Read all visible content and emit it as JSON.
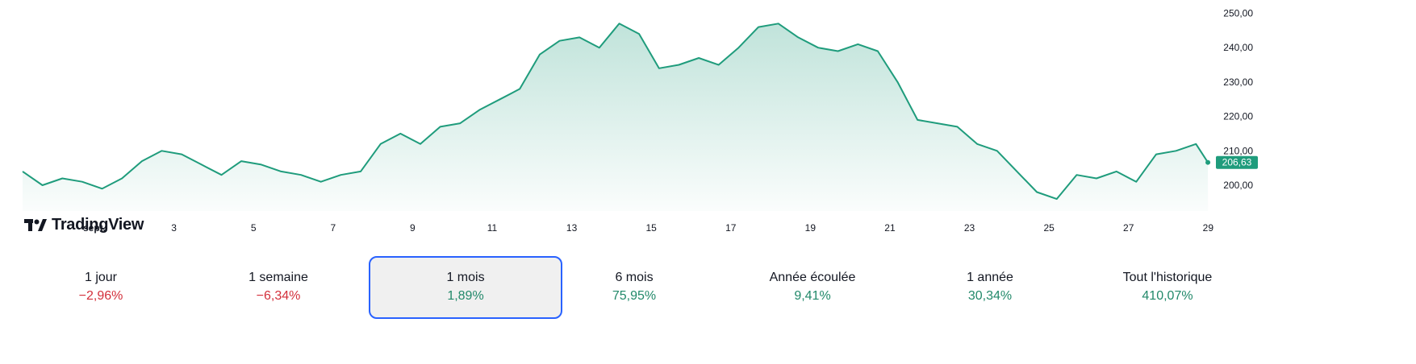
{
  "chart_data": {
    "type": "area",
    "x_label_ticks": [
      "sept.",
      "3",
      "5",
      "7",
      "9",
      "11",
      "13",
      "15",
      "17",
      "19",
      "21",
      "23",
      "25",
      "27",
      "29"
    ],
    "x": [
      0,
      0.5,
      1,
      1.5,
      2,
      2.5,
      3,
      3.5,
      4,
      4.5,
      5,
      5.5,
      6,
      6.5,
      7,
      7.5,
      8,
      8.5,
      9,
      9.5,
      10,
      10.5,
      11,
      11.5,
      12,
      12.5,
      13,
      13.5,
      14,
      14.5,
      15,
      15.5,
      16,
      16.5,
      17,
      17.5,
      18,
      18.5,
      19,
      19.5,
      20,
      20.5,
      21,
      21.5,
      22,
      22.5,
      23,
      23.5,
      24,
      24.5,
      25,
      25.5,
      26,
      26.5,
      27,
      27.5,
      28,
      28.5,
      29,
      29.5,
      29.8
    ],
    "values": [
      204,
      200,
      202,
      201,
      199,
      202,
      207,
      210,
      209,
      206,
      203,
      207,
      206,
      204,
      203,
      201,
      203,
      204,
      212,
      215,
      212,
      217,
      218,
      222,
      225,
      228,
      238,
      242,
      243,
      240,
      247,
      244,
      234,
      235,
      237,
      235,
      240,
      246,
      247,
      243,
      240,
      239,
      241,
      239,
      230,
      219,
      218,
      217,
      212,
      210,
      204,
      198,
      196,
      203,
      202,
      204,
      201,
      209,
      210,
      212,
      206.63
    ],
    "current_value": "206,63",
    "y_ticks": [
      "200,00",
      "210,00",
      "220,00",
      "230,00",
      "240,00",
      "250,00"
    ],
    "ylim": [
      192,
      252
    ],
    "xlim": [
      0,
      29.9
    ],
    "grid": false,
    "line_color": "#1f9c7c",
    "fill_color": "#1f9c7c",
    "badge_color": "#1f9c7c"
  },
  "logo": {
    "text": "TradingView"
  },
  "periods": [
    {
      "label": "1 jour",
      "change": "−2,96%",
      "trend": "neg",
      "active": false
    },
    {
      "label": "1 semaine",
      "change": "−6,34%",
      "trend": "neg",
      "active": false
    },
    {
      "label": "1 mois",
      "change": "1,89%",
      "trend": "pos",
      "active": true
    },
    {
      "label": "6 mois",
      "change": "75,95%",
      "trend": "pos",
      "active": false
    },
    {
      "label": "Année écoulée",
      "change": "9,41%",
      "trend": "pos",
      "active": false
    },
    {
      "label": "1 année",
      "change": "30,34%",
      "trend": "pos",
      "active": false
    },
    {
      "label": "Tout l'historique",
      "change": "410,07%",
      "trend": "pos",
      "active": false
    }
  ]
}
